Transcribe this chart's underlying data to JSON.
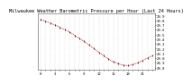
{
  "title": "Milwaukee Weather Barometric Pressure per Hour (Last 24 Hours)",
  "hours": [
    0,
    1,
    2,
    3,
    4,
    5,
    6,
    7,
    8,
    9,
    10,
    11,
    12,
    13,
    14,
    15,
    16,
    17,
    18,
    19,
    20,
    21,
    22,
    23
  ],
  "pressure": [
    29.82,
    29.78,
    29.74,
    29.7,
    29.65,
    29.6,
    29.55,
    29.48,
    29.42,
    29.35,
    29.28,
    29.2,
    29.12,
    29.05,
    28.98,
    28.92,
    28.88,
    28.85,
    28.84,
    28.86,
    28.9,
    28.95,
    29.0,
    29.05
  ],
  "line_color": "#cc0000",
  "marker_color": "#000000",
  "bg_color": "#ffffff",
  "grid_color": "#bbbbbb",
  "title_fontsize": 3.8,
  "tick_fontsize": 2.8,
  "ylim": [
    28.75,
    29.95
  ],
  "yticks": [
    28.8,
    28.9,
    29.0,
    29.1,
    29.2,
    29.3,
    29.4,
    29.5,
    29.6,
    29.7,
    29.8,
    29.9
  ],
  "xtick_step": 3,
  "n_hours": 24
}
